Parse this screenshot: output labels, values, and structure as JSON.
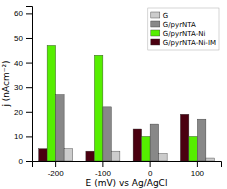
{
  "chart_data": {
    "type": "bar",
    "xlabel": "E (mV) vs Ag/AgCl",
    "ylabel": "j (nAcm⁻²)",
    "categories": [
      "-200",
      "-100",
      "0",
      "100"
    ],
    "series": [
      {
        "name": "G/pyrNTA-Ni-IM",
        "color": "#4a0010",
        "values": [
          5.0,
          4.0,
          13.0,
          19.0
        ]
      },
      {
        "name": "G/pyrNTA-Ni",
        "color": "#55ee00",
        "values": [
          47.0,
          43.0,
          10.0,
          10.0
        ]
      },
      {
        "name": "G/pyrNTA",
        "color": "#888888",
        "values": [
          27.0,
          22.0,
          15.0,
          17.0
        ]
      },
      {
        "name": "G",
        "color": "#cccccc",
        "values": [
          5.0,
          4.0,
          3.0,
          1.2
        ]
      }
    ],
    "ylim": [
      0,
      63
    ],
    "yticks": [
      0,
      10,
      20,
      30,
      40,
      50,
      60
    ],
    "grid": false,
    "legend": "upper-right"
  }
}
